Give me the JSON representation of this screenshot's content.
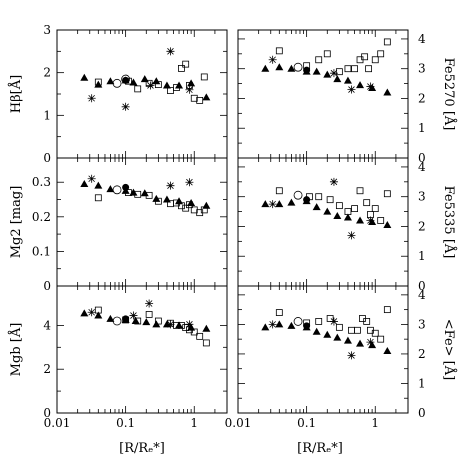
{
  "colors": {
    "ink": "#000000",
    "background": "#ffffff"
  },
  "chart_data": [
    {
      "id": "hbeta",
      "type": "scatter",
      "xscale": "log",
      "xlim": [
        0.01,
        3
      ],
      "ylim": [
        0,
        3
      ],
      "ylabel": "Hβ[Å]",
      "ylabel_side": "left",
      "yticks": [
        "0",
        "1",
        "2",
        "3"
      ],
      "xticks": [
        "0.01",
        "0.1",
        "1"
      ],
      "series": [
        {
          "marker": "filled-triangle",
          "points": [
            [
              0.025,
              1.88
            ],
            [
              0.04,
              1.72
            ],
            [
              0.06,
              1.8
            ],
            [
              0.1,
              1.82
            ],
            [
              0.13,
              1.77
            ],
            [
              0.19,
              1.85
            ],
            [
              0.28,
              1.8
            ],
            [
              0.4,
              1.7
            ],
            [
              0.6,
              1.7
            ],
            [
              0.9,
              1.75
            ],
            [
              1.5,
              1.42
            ]
          ]
        },
        {
          "marker": "open-square",
          "points": [
            [
              0.04,
              1.78
            ],
            [
              0.11,
              1.8
            ],
            [
              0.15,
              1.62
            ],
            [
              0.22,
              1.75
            ],
            [
              0.3,
              1.72
            ],
            [
              0.45,
              1.58
            ],
            [
              0.55,
              1.65
            ],
            [
              0.65,
              2.1
            ],
            [
              0.75,
              2.2
            ],
            [
              0.85,
              1.7
            ],
            [
              1.0,
              1.4
            ],
            [
              1.2,
              1.35
            ],
            [
              1.4,
              1.9
            ]
          ]
        },
        {
          "marker": "open-circle",
          "points": [
            [
              0.075,
              1.75
            ],
            [
              0.1,
              1.85
            ]
          ]
        },
        {
          "marker": "filled-circle",
          "points": [
            [
              0.1,
              1.82
            ]
          ]
        },
        {
          "marker": "asterisk",
          "points": [
            [
              0.032,
              1.4
            ],
            [
              0.1,
              1.2
            ],
            [
              0.23,
              1.7
            ],
            [
              0.45,
              2.5
            ],
            [
              0.85,
              1.6
            ]
          ]
        }
      ]
    },
    {
      "id": "fe5270",
      "type": "scatter",
      "xscale": "log",
      "xlim": [
        0.01,
        3
      ],
      "ylim": [
        0,
        4.3
      ],
      "ylabel": "Fe5270 [Å]",
      "ylabel_side": "right",
      "yticks": [
        "0",
        "1",
        "2",
        "3",
        "4"
      ],
      "xticks": [
        "0.01",
        "0.1",
        "1"
      ],
      "series": [
        {
          "marker": "filled-triangle",
          "points": [
            [
              0.025,
              3.0
            ],
            [
              0.04,
              3.05
            ],
            [
              0.06,
              3.0
            ],
            [
              0.1,
              2.9
            ],
            [
              0.14,
              2.9
            ],
            [
              0.2,
              2.8
            ],
            [
              0.28,
              2.65
            ],
            [
              0.4,
              2.6
            ],
            [
              0.6,
              2.45
            ],
            [
              0.9,
              2.35
            ],
            [
              1.5,
              2.2
            ]
          ]
        },
        {
          "marker": "open-square",
          "points": [
            [
              0.04,
              3.6
            ],
            [
              0.1,
              3.1
            ],
            [
              0.15,
              3.3
            ],
            [
              0.2,
              3.5
            ],
            [
              0.3,
              2.9
            ],
            [
              0.4,
              3.0
            ],
            [
              0.5,
              3.0
            ],
            [
              0.6,
              3.3
            ],
            [
              0.7,
              3.4
            ],
            [
              0.8,
              3.0
            ],
            [
              1.0,
              3.3
            ],
            [
              1.2,
              3.5
            ],
            [
              1.5,
              3.9
            ]
          ]
        },
        {
          "marker": "open-circle",
          "points": [
            [
              0.075,
              3.05
            ]
          ]
        },
        {
          "marker": "filled-circle",
          "points": [
            [
              0.1,
              2.95
            ]
          ]
        },
        {
          "marker": "asterisk",
          "points": [
            [
              0.032,
              3.3
            ],
            [
              0.25,
              2.85
            ],
            [
              0.45,
              2.3
            ],
            [
              0.85,
              2.4
            ]
          ]
        }
      ]
    },
    {
      "id": "mg2",
      "type": "scatter",
      "xscale": "log",
      "xlim": [
        0.01,
        3
      ],
      "ylim": [
        0,
        0.37
      ],
      "ylabel": "Mg2 [mag]",
      "ylabel_side": "left",
      "yticks": [
        "0",
        "0.1",
        "0.2",
        "0.3"
      ],
      "xticks": [
        "0.01",
        "0.1",
        "1"
      ],
      "series": [
        {
          "marker": "filled-triangle",
          "points": [
            [
              0.025,
              0.295
            ],
            [
              0.04,
              0.29
            ],
            [
              0.06,
              0.28
            ],
            [
              0.1,
              0.275
            ],
            [
              0.13,
              0.27
            ],
            [
              0.19,
              0.268
            ],
            [
              0.28,
              0.252
            ],
            [
              0.4,
              0.25
            ],
            [
              0.6,
              0.245
            ],
            [
              0.9,
              0.24
            ],
            [
              1.5,
              0.232
            ]
          ]
        },
        {
          "marker": "open-square",
          "points": [
            [
              0.04,
              0.255
            ],
            [
              0.11,
              0.27
            ],
            [
              0.15,
              0.265
            ],
            [
              0.22,
              0.262
            ],
            [
              0.3,
              0.245
            ],
            [
              0.45,
              0.238
            ],
            [
              0.55,
              0.24
            ],
            [
              0.65,
              0.232
            ],
            [
              0.75,
              0.225
            ],
            [
              0.85,
              0.235
            ],
            [
              1.0,
              0.22
            ],
            [
              1.2,
              0.212
            ],
            [
              1.4,
              0.22
            ]
          ]
        },
        {
          "marker": "open-circle",
          "points": [
            [
              0.075,
              0.278
            ]
          ]
        },
        {
          "marker": "filled-circle",
          "points": [
            [
              0.1,
              0.285
            ]
          ]
        },
        {
          "marker": "asterisk",
          "points": [
            [
              0.032,
              0.31
            ],
            [
              0.45,
              0.29
            ],
            [
              0.85,
              0.3
            ]
          ]
        }
      ]
    },
    {
      "id": "fe5335",
      "type": "scatter",
      "xscale": "log",
      "xlim": [
        0.01,
        3
      ],
      "ylim": [
        0,
        4.3
      ],
      "ylabel": "Fe5335 [Å]",
      "ylabel_side": "right",
      "yticks": [
        "0",
        "1",
        "2",
        "3",
        "4"
      ],
      "xticks": [
        "0.01",
        "0.1",
        "1"
      ],
      "series": [
        {
          "marker": "filled-triangle",
          "points": [
            [
              0.025,
              2.75
            ],
            [
              0.04,
              2.75
            ],
            [
              0.06,
              2.8
            ],
            [
              0.1,
              2.85
            ],
            [
              0.14,
              2.65
            ],
            [
              0.2,
              2.5
            ],
            [
              0.28,
              2.35
            ],
            [
              0.4,
              2.3
            ],
            [
              0.6,
              2.2
            ],
            [
              0.9,
              2.15
            ],
            [
              1.5,
              2.05
            ]
          ]
        },
        {
          "marker": "open-square",
          "points": [
            [
              0.04,
              3.2
            ],
            [
              0.11,
              3.0
            ],
            [
              0.15,
              3.0
            ],
            [
              0.22,
              2.9
            ],
            [
              0.3,
              2.7
            ],
            [
              0.4,
              2.5
            ],
            [
              0.5,
              2.6
            ],
            [
              0.6,
              3.2
            ],
            [
              0.75,
              2.8
            ],
            [
              0.85,
              2.4
            ],
            [
              1.0,
              2.6
            ],
            [
              1.2,
              2.2
            ],
            [
              1.5,
              3.1
            ]
          ]
        },
        {
          "marker": "open-circle",
          "points": [
            [
              0.075,
              3.05
            ]
          ]
        },
        {
          "marker": "filled-circle",
          "points": [
            [
              0.1,
              2.9
            ]
          ]
        },
        {
          "marker": "asterisk",
          "points": [
            [
              0.032,
              2.75
            ],
            [
              0.25,
              3.5
            ],
            [
              0.45,
              1.7
            ],
            [
              0.85,
              2.2
            ]
          ]
        }
      ]
    },
    {
      "id": "mgb",
      "type": "scatter",
      "xscale": "log",
      "xlim": [
        0.01,
        3
      ],
      "ylim": [
        0,
        5.8
      ],
      "ylabel": "Mgb [Å]",
      "ylabel_side": "left",
      "yticks": [
        "0",
        "2",
        "4"
      ],
      "xticks": [
        "0.01",
        "0.1",
        "1"
      ],
      "series": [
        {
          "marker": "filled-triangle",
          "points": [
            [
              0.025,
              4.55
            ],
            [
              0.04,
              4.45
            ],
            [
              0.06,
              4.3
            ],
            [
              0.1,
              4.25
            ],
            [
              0.14,
              4.2
            ],
            [
              0.2,
              4.15
            ],
            [
              0.28,
              4.05
            ],
            [
              0.4,
              4.05
            ],
            [
              0.6,
              4.0
            ],
            [
              0.9,
              3.9
            ],
            [
              1.5,
              3.85
            ]
          ]
        },
        {
          "marker": "open-square",
          "points": [
            [
              0.04,
              4.7
            ],
            [
              0.1,
              4.25
            ],
            [
              0.15,
              4.2
            ],
            [
              0.22,
              4.5
            ],
            [
              0.3,
              4.2
            ],
            [
              0.45,
              4.1
            ],
            [
              0.55,
              4.0
            ],
            [
              0.65,
              4.0
            ],
            [
              0.75,
              3.9
            ],
            [
              0.85,
              3.8
            ],
            [
              1.0,
              3.7
            ],
            [
              1.2,
              3.5
            ],
            [
              1.5,
              3.2
            ]
          ]
        },
        {
          "marker": "open-circle",
          "points": [
            [
              0.075,
              4.2
            ]
          ]
        },
        {
          "marker": "filled-circle",
          "points": [
            [
              0.1,
              4.3
            ]
          ]
        },
        {
          "marker": "asterisk",
          "points": [
            [
              0.032,
              4.6
            ],
            [
              0.13,
              4.45
            ],
            [
              0.22,
              5.0
            ],
            [
              0.45,
              4.05
            ],
            [
              0.85,
              4.05
            ]
          ]
        }
      ]
    },
    {
      "id": "fe-mean",
      "type": "scatter",
      "xscale": "log",
      "xlim": [
        0.01,
        3
      ],
      "ylim": [
        0,
        4.3
      ],
      "ylabel": "<Fe> [Å]",
      "ylabel_side": "right",
      "yticks": [
        "0",
        "1",
        "2",
        "3",
        "4"
      ],
      "xticks": [
        "0.01",
        "0.1",
        "1"
      ],
      "series": [
        {
          "marker": "filled-triangle",
          "points": [
            [
              0.025,
              2.9
            ],
            [
              0.04,
              3.0
            ],
            [
              0.06,
              2.95
            ],
            [
              0.1,
              2.9
            ],
            [
              0.14,
              2.75
            ],
            [
              0.2,
              2.65
            ],
            [
              0.28,
              2.55
            ],
            [
              0.4,
              2.45
            ],
            [
              0.6,
              2.35
            ],
            [
              0.9,
              2.3
            ],
            [
              1.5,
              2.1
            ]
          ]
        },
        {
          "marker": "open-square",
          "points": [
            [
              0.04,
              3.4
            ],
            [
              0.1,
              3.05
            ],
            [
              0.15,
              3.1
            ],
            [
              0.22,
              3.2
            ],
            [
              0.3,
              2.9
            ],
            [
              0.45,
              2.8
            ],
            [
              0.55,
              2.8
            ],
            [
              0.65,
              3.2
            ],
            [
              0.75,
              3.1
            ],
            [
              0.85,
              2.8
            ],
            [
              1.0,
              2.7
            ],
            [
              1.2,
              2.5
            ],
            [
              1.5,
              3.5
            ]
          ]
        },
        {
          "marker": "open-circle",
          "points": [
            [
              0.075,
              3.1
            ]
          ]
        },
        {
          "marker": "filled-circle",
          "points": [
            [
              0.1,
              2.95
            ]
          ]
        },
        {
          "marker": "asterisk",
          "points": [
            [
              0.032,
              3.0
            ],
            [
              0.25,
              3.1
            ],
            [
              0.45,
              1.95
            ],
            [
              0.85,
              2.4
            ]
          ]
        }
      ]
    }
  ],
  "axes": {
    "xlabel_left": "[R/Rₑ*]",
    "xlabel_right": "[R/Rₑ*]"
  }
}
